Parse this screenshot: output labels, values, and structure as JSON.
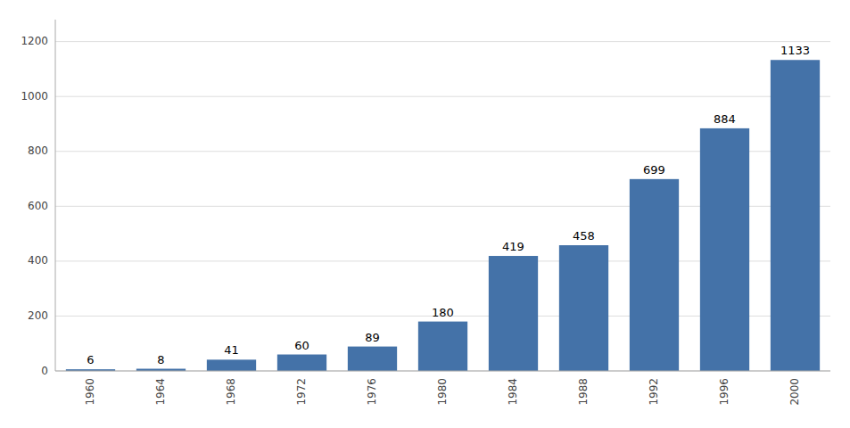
{
  "chart_data": {
    "type": "bar",
    "categories": [
      "1960",
      "1964",
      "1968",
      "1972",
      "1976",
      "1980",
      "1984",
      "1988",
      "1992",
      "1996",
      "2000"
    ],
    "values": [
      6,
      8,
      41,
      60,
      89,
      180,
      419,
      458,
      699,
      884,
      1133
    ],
    "color": "#4472a8",
    "ylim": [
      0,
      1280
    ],
    "yticks": [
      0,
      200,
      400,
      600,
      800,
      1000,
      1200
    ],
    "grid": true,
    "data_labels": true
  }
}
